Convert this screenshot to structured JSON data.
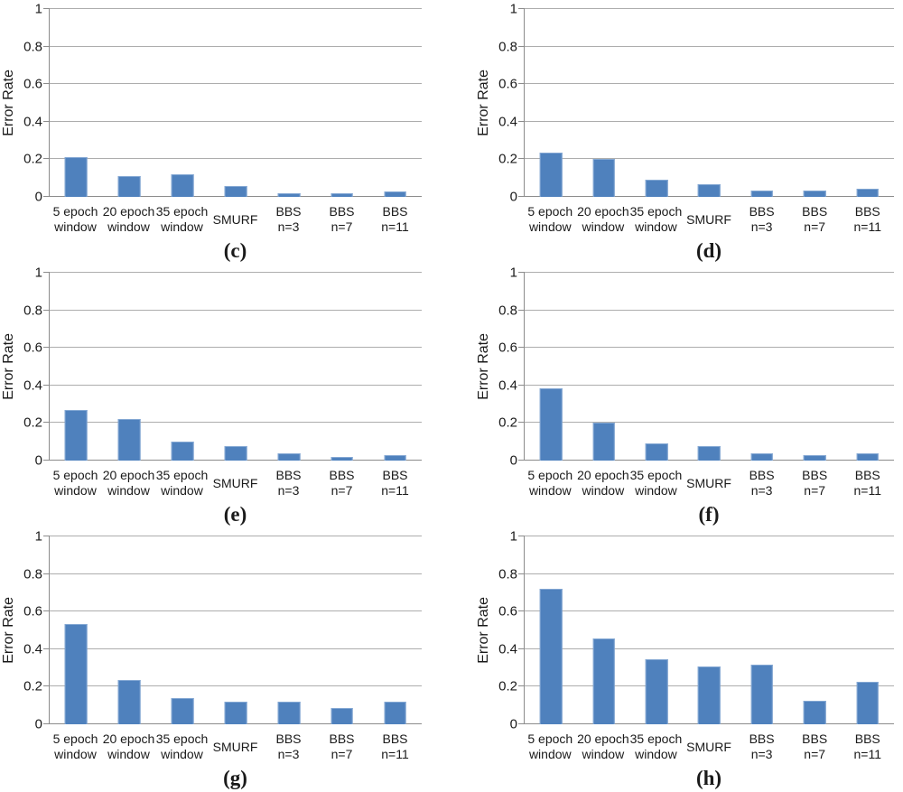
{
  "theme": {
    "background": "#ffffff",
    "bar_fill": "#4F81BD",
    "bar_border": "#83A7D3",
    "gridline_color": "#ADADAD",
    "axis_color": "#8C8C8C",
    "text_color": "#1a1a1a"
  },
  "chart_data": [
    {
      "type": "bar",
      "caption": "(c)",
      "ylabel": "Error Rate",
      "xlabel": "",
      "categories": [
        "5 epoch\nwindow",
        "20 epoch\nwindow",
        "35 epoch\nwindow",
        "SMURF",
        "BBS\nn=3",
        "BBS\nn=7",
        "BBS\nn=11"
      ],
      "values": [
        0.21,
        0.11,
        0.12,
        0.06,
        0.02,
        0.02,
        0.03
      ],
      "ylim": [
        0,
        1
      ],
      "yticks": [
        0,
        0.2,
        0.4,
        0.6,
        0.8,
        1
      ],
      "grid": true,
      "legend": false
    },
    {
      "type": "bar",
      "caption": "(d)",
      "ylabel": "Error Rate",
      "xlabel": "",
      "categories": [
        "5 epoch\nwindow",
        "20 epoch\nwindow",
        "35 epoch\nwindow",
        "SMURF",
        "BBS\nn=3",
        "BBS\nn=7",
        "BBS\nn=11"
      ],
      "values": [
        0.235,
        0.2,
        0.09,
        0.065,
        0.035,
        0.035,
        0.045
      ],
      "ylim": [
        0,
        1
      ],
      "yticks": [
        0,
        0.2,
        0.4,
        0.6,
        0.8,
        1
      ],
      "grid": true,
      "legend": false
    },
    {
      "type": "bar",
      "caption": "(e)",
      "ylabel": "Error Rate",
      "xlabel": "",
      "categories": [
        "5 epoch\nwindow",
        "20 epoch\nwindow",
        "35 epoch\nwindow",
        "SMURF",
        "BBS\nn=3",
        "BBS\nn=7",
        "BBS\nn=11"
      ],
      "values": [
        0.27,
        0.22,
        0.1,
        0.075,
        0.04,
        0.02,
        0.03
      ],
      "ylim": [
        0,
        1
      ],
      "yticks": [
        0,
        0.2,
        0.4,
        0.6,
        0.8,
        1
      ],
      "grid": true,
      "legend": false
    },
    {
      "type": "bar",
      "caption": "(f)",
      "ylabel": "Error Rate",
      "xlabel": "",
      "categories": [
        "5 epoch\nwindow",
        "20 epoch\nwindow",
        "35 epoch\nwindow",
        "SMURF",
        "BBS\nn=3",
        "BBS\nn=7",
        "BBS\nn=11"
      ],
      "values": [
        0.385,
        0.2,
        0.09,
        0.078,
        0.04,
        0.03,
        0.04
      ],
      "ylim": [
        0,
        1
      ],
      "yticks": [
        0,
        0.2,
        0.4,
        0.6,
        0.8,
        1
      ],
      "grid": true,
      "legend": false
    },
    {
      "type": "bar",
      "caption": "(g)",
      "ylabel": "Error Rate",
      "xlabel": "",
      "categories": [
        "5 epoch\nwindow",
        "20 epoch\nwindow",
        "35 epoch\nwindow",
        "SMURF",
        "BBS\nn=3",
        "BBS\nn=7",
        "BBS\nn=11"
      ],
      "values": [
        0.535,
        0.235,
        0.14,
        0.12,
        0.12,
        0.085,
        0.12
      ],
      "ylim": [
        0,
        1
      ],
      "yticks": [
        0,
        0.2,
        0.4,
        0.6,
        0.8,
        1
      ],
      "grid": true,
      "legend": false
    },
    {
      "type": "bar",
      "caption": "(h)",
      "ylabel": "Error Rate",
      "xlabel": "",
      "categories": [
        "5 epoch\nwindow",
        "20 epoch\nwindow",
        "35 epoch\nwindow",
        "SMURF",
        "BBS\nn=3",
        "BBS\nn=7",
        "BBS\nn=11"
      ],
      "values": [
        0.72,
        0.455,
        0.345,
        0.31,
        0.315,
        0.125,
        0.225
      ],
      "ylim": [
        0,
        1
      ],
      "yticks": [
        0,
        0.2,
        0.4,
        0.6,
        0.8,
        1
      ],
      "grid": true,
      "legend": false
    }
  ]
}
